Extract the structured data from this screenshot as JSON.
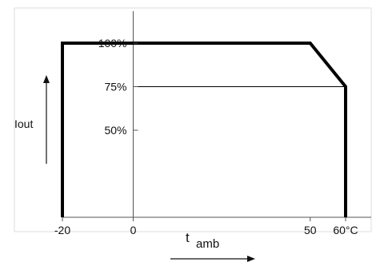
{
  "chart_data": {
    "type": "line",
    "title": "",
    "xlabel": "t",
    "xlabel_sub": "amb",
    "ylabel": "Iout",
    "xlim": [
      -20,
      60
    ],
    "ylim": [
      0,
      100
    ],
    "grid": false,
    "x_ticks": [
      {
        "value": -20,
        "label": "-20"
      },
      {
        "value": 0,
        "label": "0"
      },
      {
        "value": 50,
        "label": "50"
      },
      {
        "value": 60,
        "label": "60°C"
      }
    ],
    "y_ticks": [
      {
        "value": 50,
        "label": "50%"
      },
      {
        "value": 75,
        "label": "75%"
      },
      {
        "value": 100,
        "label": "100%"
      }
    ],
    "series": [
      {
        "points": [
          {
            "x": -20,
            "y": 0
          },
          {
            "x": -20,
            "y": 100
          },
          {
            "x": 50,
            "y": 100
          },
          {
            "x": 60,
            "y": 75
          },
          {
            "x": 60,
            "y": 0
          }
        ]
      }
    ],
    "reference_lines": [
      {
        "y": 75,
        "x_from": 0,
        "x_to": 60
      }
    ],
    "colors": {
      "line": "#000000",
      "axis": "#555555",
      "frame": "#dddddd"
    }
  }
}
